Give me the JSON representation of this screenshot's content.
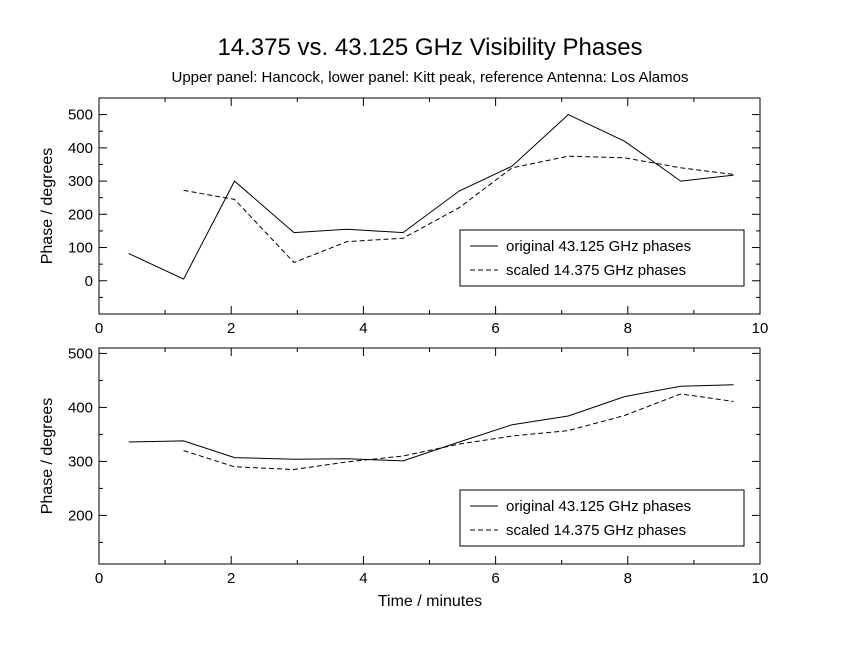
{
  "chart_data": [
    {
      "type": "line",
      "title": "14.375 vs. 43.125 GHz Visibility Phases",
      "subtitle": "Upper panel: Hancock, lower panel: Kitt peak, reference Antenna: Los Alamos",
      "xlabel": "",
      "ylabel": "Phase / degrees",
      "xlim": [
        0,
        10
      ],
      "ylim": [
        -100,
        550
      ],
      "xticks": [
        "0",
        "2",
        "4",
        "6",
        "8",
        "10"
      ],
      "yticks": [
        "0",
        "100",
        "200",
        "300",
        "400",
        "500"
      ],
      "legend_position": "bottom-right",
      "series": [
        {
          "name": "original 43.125 GHz phases",
          "style": "solid",
          "x": [
            0.45,
            1.28,
            2.05,
            2.95,
            3.75,
            4.6,
            5.45,
            6.25,
            7.1,
            7.95,
            8.8,
            9.6
          ],
          "y": [
            82,
            5,
            300,
            145,
            155,
            145,
            270,
            345,
            500,
            420,
            300,
            318
          ]
        },
        {
          "name": "scaled 14.375 GHz phases",
          "style": "dashed",
          "x": [
            1.28,
            2.05,
            2.95,
            3.75,
            4.6,
            5.45,
            6.25,
            7.1,
            7.95,
            8.8,
            9.6
          ],
          "y": [
            272,
            245,
            55,
            118,
            128,
            220,
            340,
            375,
            370,
            340,
            320
          ]
        }
      ]
    },
    {
      "type": "line",
      "title": "",
      "xlabel": "Time / minutes",
      "ylabel": "Phase / degrees",
      "xlim": [
        0,
        10
      ],
      "ylim": [
        110,
        510
      ],
      "xticks": [
        "0",
        "2",
        "4",
        "6",
        "8",
        "10"
      ],
      "yticks": [
        "200",
        "300",
        "400",
        "500"
      ],
      "legend_position": "bottom-right",
      "series": [
        {
          "name": "original 43.125 GHz phases",
          "style": "solid",
          "x": [
            0.45,
            1.28,
            2.05,
            2.95,
            3.75,
            4.6,
            5.45,
            6.25,
            7.1,
            7.95,
            8.8,
            9.6
          ],
          "y": [
            336,
            338,
            307,
            304,
            305,
            301,
            336,
            368,
            384,
            420,
            439,
            442
          ]
        },
        {
          "name": "scaled 14.375 GHz phases",
          "style": "dashed",
          "x": [
            1.28,
            2.05,
            2.95,
            3.75,
            4.6,
            5.45,
            6.25,
            7.1,
            7.95,
            8.8,
            9.6
          ],
          "y": [
            320,
            290,
            285,
            299,
            310,
            332,
            347,
            357,
            385,
            425,
            411
          ]
        }
      ]
    }
  ]
}
